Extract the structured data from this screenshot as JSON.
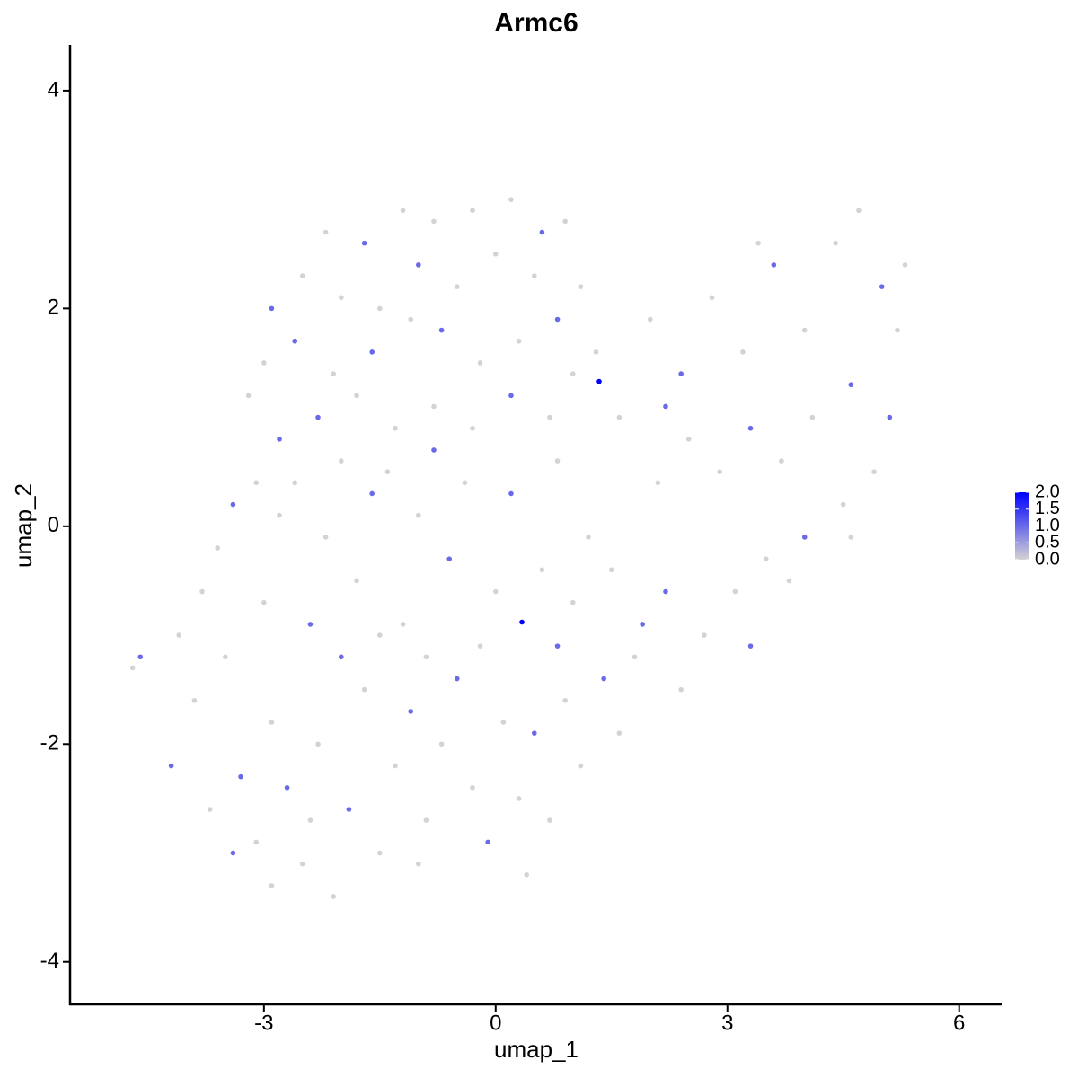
{
  "chart_data": {
    "type": "scatter",
    "title": "Armc6",
    "xlabel": "umap_1",
    "ylabel": "umap_2",
    "x": [
      -2.2,
      -1.7,
      -1.2,
      -0.8,
      -0.3,
      0.2,
      0.6,
      0.9,
      -2.9,
      -2.5,
      -2.0,
      -1.5,
      -1.0,
      -0.5,
      0.0,
      0.5,
      1.1,
      -3.0,
      -2.6,
      -2.1,
      -1.6,
      -1.1,
      -0.7,
      -0.2,
      0.3,
      0.8,
      1.3,
      -3.2,
      -2.8,
      -2.3,
      -1.8,
      -1.3,
      -0.8,
      -0.3,
      0.2,
      0.7,
      1.34,
      1.0,
      1.6,
      2.0,
      2.4,
      2.8,
      3.2,
      3.6,
      4.0,
      4.4,
      4.7,
      5.0,
      5.2,
      4.6,
      4.1,
      3.7,
      3.3,
      2.9,
      2.5,
      2.1,
      5.1,
      4.9,
      4.5,
      4.0,
      3.5,
      3.1,
      2.7,
      3.3,
      3.8,
      2.4,
      1.9,
      1.5,
      4.6,
      3.4,
      2.2,
      5.3,
      -4.7,
      -4.6,
      -4.2,
      -3.9,
      -3.7,
      -3.5,
      -3.3,
      -3.1,
      -2.9,
      -2.7,
      -2.5,
      -2.3,
      -2.1,
      -1.9,
      -1.7,
      -1.5,
      -1.3,
      -1.1,
      -0.9,
      -0.7,
      -0.5,
      -0.3,
      -0.1,
      0.1,
      0.3,
      0.5,
      0.7,
      0.9,
      1.1,
      1.4,
      0.34,
      0.0,
      -0.6,
      -1.2,
      -1.8,
      -2.4,
      -3.0,
      -3.6,
      -3.4,
      -2.8,
      -2.2,
      -1.6,
      -1.0,
      -0.4,
      0.2,
      0.8,
      1.2,
      0.6,
      -2.0,
      -1.4,
      -0.8,
      -2.6,
      -3.1,
      -3.8,
      -4.1,
      -2.0,
      -1.5,
      -0.9,
      -0.2,
      0.8,
      1.0,
      1.6,
      1.8,
      2.2,
      -2.4,
      -1.0,
      0.4,
      -3.4,
      -2.9
    ],
    "y": [
      2.7,
      2.6,
      2.9,
      2.8,
      2.9,
      3.0,
      2.7,
      2.8,
      2.0,
      2.3,
      2.1,
      2.0,
      2.4,
      2.2,
      2.5,
      2.3,
      2.2,
      1.5,
      1.7,
      1.4,
      1.6,
      1.9,
      1.8,
      1.5,
      1.7,
      1.9,
      1.6,
      1.2,
      0.8,
      1.0,
      1.2,
      0.9,
      1.1,
      0.9,
      1.2,
      1.0,
      1.33,
      1.4,
      1.0,
      1.9,
      1.4,
      2.1,
      1.6,
      2.4,
      1.8,
      2.6,
      2.9,
      2.2,
      1.8,
      1.3,
      1.0,
      0.6,
      0.9,
      0.5,
      0.8,
      0.4,
      1.0,
      0.5,
      0.2,
      -0.1,
      -0.3,
      -0.6,
      -1.0,
      -1.1,
      -0.5,
      -1.5,
      -0.9,
      -0.4,
      -0.1,
      2.6,
      1.1,
      2.4,
      -1.3,
      -1.2,
      -2.2,
      -1.6,
      -2.6,
      -1.2,
      -2.3,
      -2.9,
      -1.8,
      -2.4,
      -3.1,
      -2.0,
      -3.4,
      -2.6,
      -1.5,
      -3.0,
      -2.2,
      -1.7,
      -2.7,
      -2.0,
      -1.4,
      -2.4,
      -2.9,
      -1.8,
      -2.5,
      -1.9,
      -2.7,
      -1.6,
      -2.2,
      -1.4,
      -0.88,
      -0.6,
      -0.3,
      -0.9,
      -0.5,
      -0.9,
      -0.7,
      -0.2,
      0.2,
      0.1,
      -0.1,
      0.3,
      0.1,
      0.4,
      0.3,
      0.6,
      -0.1,
      -0.4,
      0.6,
      0.5,
      0.7,
      0.4,
      0.4,
      -0.6,
      -1.0,
      -1.2,
      -1.0,
      -1.2,
      -1.1,
      -1.1,
      -0.7,
      -1.9,
      -1.2,
      -0.6,
      -2.7,
      -3.1,
      -3.2,
      -3.0,
      -3.3
    ],
    "expression": [
      0,
      1,
      0,
      0,
      0,
      0,
      1,
      0,
      1,
      0,
      0,
      0,
      1,
      0,
      0,
      0,
      0,
      0,
      1,
      0,
      1,
      0,
      1,
      0,
      0,
      1,
      0,
      0,
      1,
      1,
      0,
      0,
      0,
      0,
      1,
      0,
      2.0,
      0,
      0,
      0,
      1,
      0,
      0,
      1,
      0,
      0,
      0,
      1,
      0,
      1,
      0,
      0,
      1,
      0,
      0,
      0,
      1,
      0,
      0,
      1,
      0,
      0,
      0,
      1,
      0,
      0,
      1,
      0,
      0,
      0,
      1,
      0,
      0,
      1,
      1,
      0,
      0,
      0,
      1,
      0,
      0,
      1,
      0,
      0,
      0,
      1,
      0,
      0,
      0,
      1,
      0,
      0,
      1,
      0,
      1,
      0,
      0,
      1,
      0,
      0,
      0,
      1,
      2.0,
      0,
      1,
      0,
      0,
      1,
      0,
      0,
      1,
      0,
      0,
      1,
      0,
      0,
      1,
      0,
      0,
      0,
      0,
      0,
      1,
      0,
      0,
      0,
      0,
      1,
      0,
      0,
      0,
      1,
      0,
      0,
      0,
      1,
      0,
      0,
      0,
      1,
      0
    ],
    "xlim": [
      -5.51,
      6.55
    ],
    "ylim": [
      -4.39,
      4.42
    ],
    "xticks": [
      -3,
      0,
      3,
      6
    ],
    "yticks": [
      -4,
      -2,
      0,
      2,
      4
    ],
    "colorbar": {
      "low": "#d3d3d3",
      "high": "#0000ff",
      "lim": [
        0,
        2.0
      ],
      "ticks": [
        {
          "value": 0,
          "label": "0.0"
        },
        {
          "value": 0.5,
          "label": "0.5"
        },
        {
          "value": 1.0,
          "label": "1.0"
        },
        {
          "value": 1.5,
          "label": "1.5"
        },
        {
          "value": 2.0,
          "label": "2.0"
        }
      ]
    }
  }
}
